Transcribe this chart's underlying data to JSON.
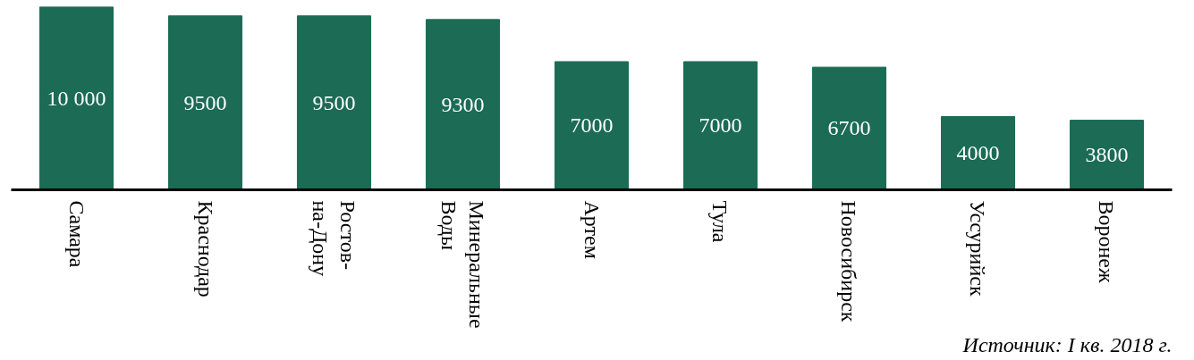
{
  "chart_data": {
    "type": "bar",
    "categories": [
      "Самара",
      "Краснодар",
      "Ростов-на-Дону",
      "Минеральные Воды",
      "Артем",
      "Тула",
      "Новосибирск",
      "Уссурийск",
      "Воронеж"
    ],
    "values": [
      10000,
      9500,
      9500,
      9300,
      7000,
      7000,
      6700,
      4000,
      3800
    ],
    "value_labels": [
      "10 000",
      "9500",
      "9500",
      "9300",
      "7000",
      "7000",
      "6700",
      "4000",
      "3800"
    ],
    "color": "#1b6b55",
    "grid": false,
    "annotations": [
      "Источник: I кв. 2018 г."
    ]
  }
}
